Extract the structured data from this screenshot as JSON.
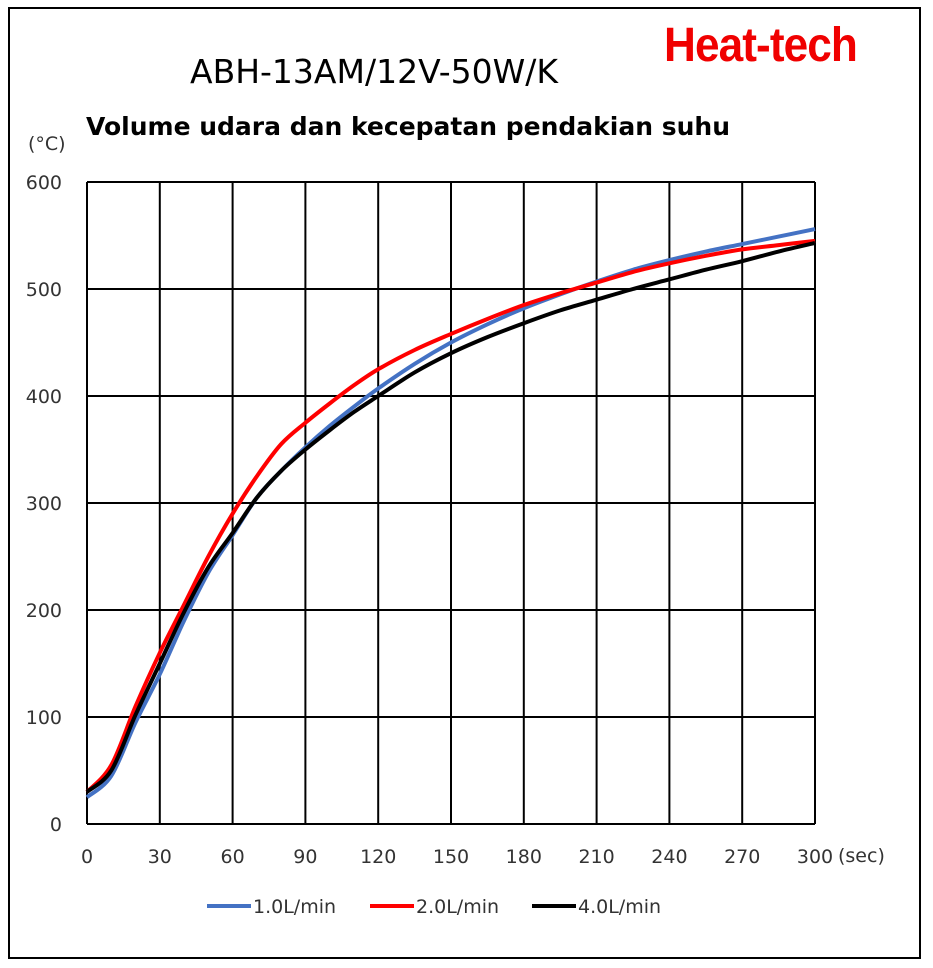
{
  "logo": "Heat-tech",
  "chart_data": {
    "type": "line",
    "title": "ABH-13AM/12V-50W/K",
    "subtitle": "Volume udara dan kecepatan pendakian suhu",
    "ylabel": "(°C)",
    "xlabel": "(sec)",
    "xlim": [
      0,
      300
    ],
    "ylim": [
      0,
      600
    ],
    "xticks": [
      0,
      30,
      60,
      90,
      120,
      150,
      180,
      210,
      240,
      270,
      300
    ],
    "yticks": [
      0,
      100,
      200,
      300,
      400,
      500,
      600
    ],
    "grid": true,
    "legend_position": "bottom",
    "x": [
      0,
      10,
      20,
      30,
      40,
      50,
      60,
      70,
      80,
      90,
      100,
      110,
      120,
      135,
      150,
      165,
      180,
      195,
      210,
      225,
      240,
      255,
      270,
      285,
      300
    ],
    "series": [
      {
        "name": "1.0L/min",
        "color": "#4472c4",
        "values": [
          25,
          45,
          95,
          140,
          190,
          235,
          270,
          305,
          330,
          352,
          372,
          390,
          407,
          430,
          450,
          467,
          482,
          495,
          507,
          518,
          527,
          535,
          542,
          549,
          556
        ]
      },
      {
        "name": "2.0L/min",
        "color": "#ff0000",
        "values": [
          30,
          55,
          110,
          160,
          205,
          250,
          290,
          325,
          355,
          375,
          393,
          410,
          425,
          443,
          458,
          472,
          485,
          496,
          506,
          516,
          524,
          531,
          537,
          541,
          545
        ]
      },
      {
        "name": "4.0L/min",
        "color": "#000000",
        "values": [
          30,
          50,
          102,
          150,
          198,
          240,
          272,
          305,
          330,
          350,
          368,
          385,
          400,
          422,
          440,
          455,
          468,
          480,
          490,
          500,
          509,
          518,
          526,
          535,
          543
        ]
      }
    ]
  }
}
